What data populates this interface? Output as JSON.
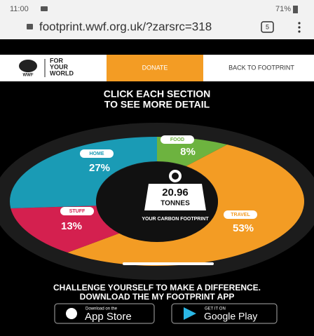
{
  "status_bar": {
    "time": "11:00",
    "battery": "71%"
  },
  "browser": {
    "url": "footprint.wwf.org.uk/?zarsrc=318",
    "tabs": "5"
  },
  "nav": {
    "logo_mark": "WWF",
    "logo_text": [
      "FOR",
      "YOUR",
      "WORLD"
    ],
    "donate": "DONATE",
    "back": "BACK TO FOOTPRINT"
  },
  "heading": [
    "CLICK EACH SECTION",
    "TO SEE MORE DETAIL"
  ],
  "footprint": {
    "total": "20.96",
    "unit": "TONNES",
    "caption": "YOUR CARBON FOOTPRINT",
    "segments": [
      {
        "name": "FOOD",
        "value": 8,
        "value_label": "8%",
        "color": "#6db33f"
      },
      {
        "name": "TRAVEL",
        "value": 53,
        "value_label": "53%",
        "color": "#f39c24"
      },
      {
        "name": "STUFF",
        "value": 13,
        "value_label": "13%",
        "color": "#d4204f"
      },
      {
        "name": "HOME",
        "value": 27,
        "value_label": "27%",
        "color": "#1a9bb5"
      }
    ]
  },
  "cta": [
    "CHALLENGE YOURSELF TO MAKE A DIFFERENCE.",
    "DOWNLOAD THE MY FOOTPRINT APP"
  ],
  "stores": [
    {
      "small": "Download on the",
      "big": "App Store"
    },
    {
      "small": "GET IT ON",
      "big": "Google Play"
    }
  ]
}
